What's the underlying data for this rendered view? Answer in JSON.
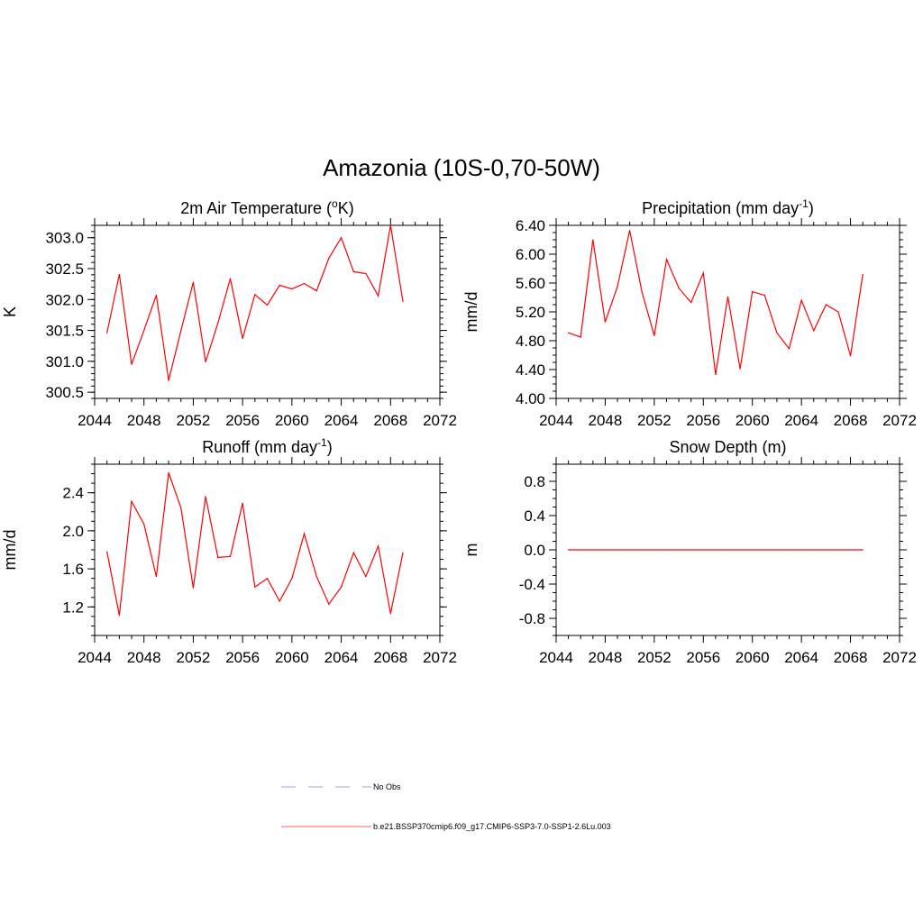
{
  "figure": {
    "title": "Amazonia (10S-0,70-50W)"
  },
  "legend": [
    {
      "label": "No Obs",
      "color": "#b3b3e6",
      "dash": "dashed"
    },
    {
      "label": "b.e21.BSSP370cmip6.f09_g17.CMIP6-SSP3-7.0-SSP1-2.6Lu.003",
      "color": "#ff8080",
      "dash": "solid"
    }
  ],
  "chart_data": [
    {
      "id": "temp",
      "type": "line",
      "title": "2m Air Temperature (",
      "title_sup": "o",
      "title_after": "K)",
      "ylabel": "K",
      "xlim": [
        2044,
        2072
      ],
      "ylim": [
        300.4,
        303.2
      ],
      "xticks": [
        "2044",
        "2048",
        "2052",
        "2056",
        "2060",
        "2064",
        "2068",
        "2072"
      ],
      "yticks": [
        "300.5",
        "301.0",
        "301.5",
        "302.0",
        "302.5",
        "303.0"
      ],
      "ytick_values": [
        300.5,
        301.0,
        301.5,
        302.0,
        302.5,
        303.0
      ],
      "yminor_step": 0.1,
      "series": [
        {
          "color": "#ff0000",
          "x": [
            2045,
            2046,
            2047,
            2048,
            2049,
            2050,
            2051,
            2052,
            2053,
            2054,
            2055,
            2056,
            2057,
            2058,
            2059,
            2060,
            2061,
            2062,
            2063,
            2064,
            2065,
            2066,
            2067,
            2068,
            2069
          ],
          "y": [
            301.46,
            302.41,
            300.95,
            301.5,
            302.07,
            300.69,
            301.5,
            302.28,
            300.99,
            301.62,
            302.34,
            301.37,
            302.08,
            301.91,
            302.23,
            302.17,
            302.26,
            302.14,
            302.67,
            303.0,
            302.45,
            302.42,
            302.06,
            303.2,
            301.97
          ]
        }
      ]
    },
    {
      "id": "precip",
      "type": "line",
      "title": "Precipitation (mm day",
      "title_sup": "-1",
      "title_after": ")",
      "ylabel": "mm/d",
      "xlim": [
        2044,
        2072
      ],
      "ylim": [
        4.0,
        6.4
      ],
      "xticks": [
        "2044",
        "2048",
        "2052",
        "2056",
        "2060",
        "2064",
        "2068",
        "2072"
      ],
      "yticks": [
        "4.00",
        "4.40",
        "4.80",
        "5.20",
        "5.60",
        "6.00",
        "6.40"
      ],
      "ytick_values": [
        4.0,
        4.4,
        4.8,
        5.2,
        5.6,
        6.0,
        6.4
      ],
      "yminor_step": 0.1,
      "series": [
        {
          "color": "#ff0000",
          "x": [
            2045,
            2046,
            2047,
            2048,
            2049,
            2050,
            2051,
            2052,
            2053,
            2054,
            2055,
            2056,
            2057,
            2058,
            2059,
            2060,
            2061,
            2062,
            2063,
            2064,
            2065,
            2066,
            2067,
            2068,
            2069
          ],
          "y": [
            4.91,
            4.85,
            6.2,
            5.06,
            5.55,
            6.33,
            5.47,
            4.87,
            5.93,
            5.53,
            5.33,
            5.74,
            4.33,
            5.41,
            4.41,
            5.48,
            5.43,
            4.91,
            4.69,
            5.36,
            4.94,
            5.3,
            5.2,
            4.59,
            5.72
          ]
        }
      ]
    },
    {
      "id": "runoff",
      "type": "line",
      "title": "Runoff (mm day",
      "title_sup": "-1",
      "title_after": ")",
      "ylabel": "mm/d",
      "xlim": [
        2044,
        2072
      ],
      "ylim": [
        0.9,
        2.7
      ],
      "xticks": [
        "2044",
        "2048",
        "2052",
        "2056",
        "2060",
        "2064",
        "2068",
        "2072"
      ],
      "yticks": [
        "1.2",
        "1.6",
        "2.0",
        "2.4"
      ],
      "ytick_values": [
        1.2,
        1.6,
        2.0,
        2.4
      ],
      "yminor_step": 0.1,
      "series": [
        {
          "color": "#ff0000",
          "x": [
            2045,
            2046,
            2047,
            2048,
            2049,
            2050,
            2051,
            2052,
            2053,
            2054,
            2055,
            2056,
            2057,
            2058,
            2059,
            2060,
            2061,
            2062,
            2063,
            2064,
            2065,
            2066,
            2067,
            2068,
            2069
          ],
          "y": [
            1.78,
            1.11,
            2.31,
            2.07,
            1.52,
            2.61,
            2.24,
            1.4,
            2.36,
            1.72,
            1.73,
            2.29,
            1.41,
            1.5,
            1.26,
            1.5,
            1.97,
            1.52,
            1.23,
            1.41,
            1.77,
            1.52,
            1.84,
            1.13,
            1.77
          ]
        }
      ]
    },
    {
      "id": "snow",
      "type": "line",
      "title": "Snow Depth (m)",
      "title_sup": "",
      "title_after": "",
      "ylabel": "m",
      "xlim": [
        2044,
        2072
      ],
      "ylim": [
        -1.0,
        1.0
      ],
      "xticks": [
        "2044",
        "2048",
        "2052",
        "2056",
        "2060",
        "2064",
        "2068",
        "2072"
      ],
      "yticks": [
        "-0.8",
        "-0.4",
        "0.0",
        "0.4",
        "0.8"
      ],
      "ytick_values": [
        -0.8,
        -0.4,
        0.0,
        0.4,
        0.8
      ],
      "yminor_step": 0.1,
      "series": [
        {
          "color": "#ff0000",
          "x": [
            2045,
            2046,
            2047,
            2048,
            2049,
            2050,
            2051,
            2052,
            2053,
            2054,
            2055,
            2056,
            2057,
            2058,
            2059,
            2060,
            2061,
            2062,
            2063,
            2064,
            2065,
            2066,
            2067,
            2068,
            2069
          ],
          "y": [
            0,
            0,
            0,
            0,
            0,
            0,
            0,
            0,
            0,
            0,
            0,
            0,
            0,
            0,
            0,
            0,
            0,
            0,
            0,
            0,
            0,
            0,
            0,
            0,
            0
          ]
        }
      ]
    }
  ]
}
